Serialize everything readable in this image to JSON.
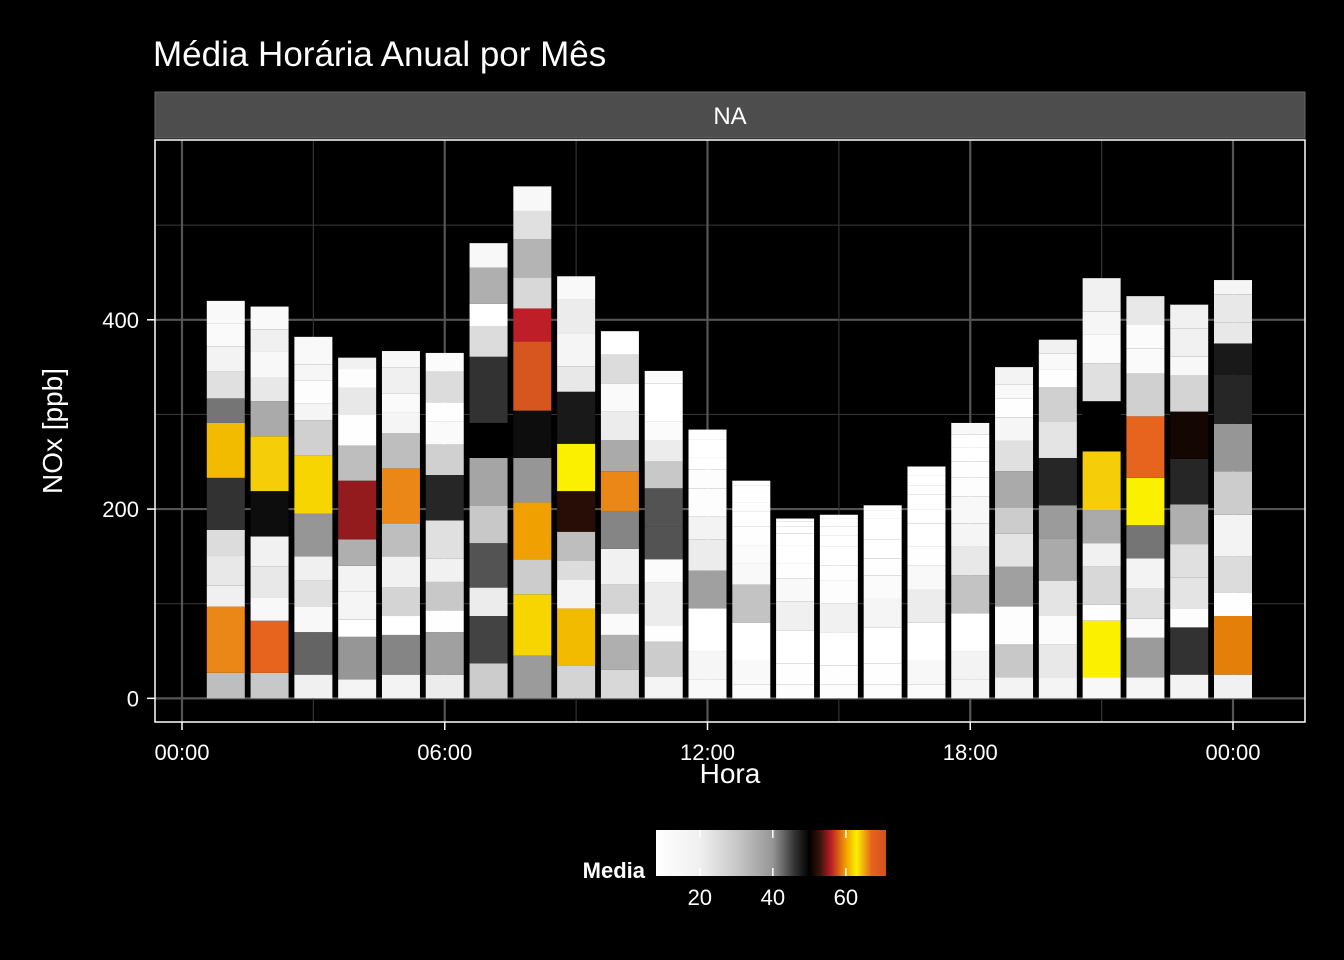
{
  "chart_data": {
    "type": "bar",
    "subtype": "stacked",
    "title": "Média Horária Anual por Mês",
    "facet_label": "NA",
    "xlabel": "Hora",
    "ylabel": "NOx [ppb]",
    "x_ticks": [
      "00:00",
      "06:00",
      "12:00",
      "18:00",
      "00:00"
    ],
    "y_ticks": [
      0,
      200,
      400
    ],
    "ylim": [
      -25,
      590
    ],
    "grid": true,
    "legend": {
      "title": "Media",
      "position": "bottom",
      "ticks": [
        20,
        40,
        60
      ],
      "range": [
        8,
        71
      ]
    },
    "colors": {
      "background": "#000000",
      "facet_strip": "#4d4d4d",
      "grid": "#555555",
      "panel_border": "#ffffff"
    },
    "series_note_hours": "each bar = hour of day, stacked segments = month 1..12 (bottom to top)",
    "bars": [
      {
        "hour": 1,
        "segments": [
          27,
          70,
          22,
          32,
          27,
          55,
          58,
          26,
          28,
          27,
          24,
          24
        ],
        "colors": [
          32,
          66,
          20,
          22,
          25,
          46,
          61,
          42,
          24,
          18,
          12,
          13
        ]
      },
      {
        "hour": 2,
        "segments": [
          27,
          55,
          25,
          32,
          32,
          48,
          58,
          37,
          25,
          27,
          24,
          24
        ],
        "colors": [
          30,
          67,
          14,
          22,
          19,
          49,
          64,
          36,
          22,
          14,
          20,
          13
        ]
      },
      {
        "hour": 3,
        "segments": [
          25,
          45,
          27,
          28,
          25,
          45,
          62,
          37,
          18,
          24,
          17,
          29
        ],
        "colors": [
          20,
          43,
          14,
          24,
          20,
          40,
          62,
          28,
          16,
          10,
          15,
          13
        ]
      },
      {
        "hour": 4,
        "segments": [
          20,
          45,
          18,
          30,
          27,
          28,
          62,
          37,
          33,
          28,
          20,
          12
        ],
        "colors": [
          17,
          40,
          8,
          16,
          18,
          35,
          55,
          32,
          9,
          22,
          10,
          19
        ]
      },
      {
        "hour": 5,
        "segments": [
          25,
          42,
          20,
          30,
          33,
          35,
          58,
          37,
          22,
          20,
          28,
          17
        ],
        "colors": [
          18,
          41,
          8,
          27,
          19,
          32,
          66,
          32,
          16,
          12,
          20,
          14
        ]
      },
      {
        "hour": 6,
        "segments": [
          25,
          45,
          23,
          30,
          25,
          40,
          48,
          32,
          25,
          20,
          32,
          20
        ],
        "colors": [
          21,
          38,
          9,
          30,
          19,
          24,
          47,
          28,
          12,
          9,
          25,
          11
        ]
      },
      {
        "hour": 7,
        "segments": [
          37,
          50,
          30,
          47,
          40,
          50,
          37,
          70,
          32,
          24,
          38,
          26
        ],
        "colors": [
          29,
          45,
          21,
          44,
          30,
          37,
          50,
          46,
          25,
          8,
          35,
          14
        ]
      },
      {
        "hour": 8,
        "segments": [
          45,
          65,
          37,
          60,
          47,
          50,
          73,
          35,
          33,
          40,
          30,
          26
        ],
        "colors": [
          39,
          62,
          29,
          60,
          40,
          49,
          70,
          56,
          26,
          34,
          24,
          14
        ]
      },
      {
        "hour": 9,
        "segments": [
          35,
          60,
          31,
          20,
          30,
          43,
          50,
          55,
          27,
          35,
          35,
          25
        ],
        "colors": [
          27,
          61,
          17,
          25,
          32,
          52,
          63,
          48,
          22,
          16,
          21,
          13
        ]
      },
      {
        "hour": 10,
        "segments": [
          30,
          37,
          23,
          30,
          38,
          40,
          42,
          33,
          30,
          30,
          30,
          25
        ],
        "colors": [
          26,
          35,
          12,
          27,
          19,
          41,
          66,
          36,
          21,
          12,
          25,
          7
        ]
      },
      {
        "hour": 11,
        "segments": [
          23,
          37,
          17,
          45,
          25,
          35,
          40,
          28,
          23,
          20,
          40,
          13
        ],
        "colors": [
          17,
          29,
          9,
          21,
          11,
          44,
          44,
          30,
          21,
          11,
          7,
          11
        ]
      },
      {
        "hour": 12,
        "segments": [
          20,
          30,
          45,
          40,
          33,
          24,
          30,
          20,
          12,
          10,
          10,
          10
        ],
        "colors": [
          13,
          15,
          8,
          38,
          21,
          18,
          10,
          10,
          8,
          8,
          8,
          8
        ]
      },
      {
        "hour": 13,
        "segments": [
          15,
          25,
          40,
          40,
          22,
          20,
          20,
          15,
          10,
          10,
          8,
          5
        ],
        "colors": [
          11,
          13,
          8,
          31,
          13,
          11,
          9,
          8,
          8,
          8,
          8,
          8
        ]
      },
      {
        "hour": 14,
        "segments": [
          15,
          22,
          35,
          30,
          25,
          15,
          20,
          12,
          8,
          5,
          3,
          0
        ],
        "colors": [
          10,
          9,
          8,
          20,
          13,
          9,
          8,
          8,
          8,
          8,
          8,
          8
        ]
      },
      {
        "hour": 15,
        "segments": [
          15,
          20,
          35,
          30,
          25,
          15,
          20,
          12,
          10,
          8,
          4,
          0
        ],
        "colors": [
          10,
          9,
          8,
          19,
          10,
          9,
          8,
          8,
          8,
          8,
          8,
          8
        ]
      },
      {
        "hour": 16,
        "segments": [
          15,
          22,
          38,
          30,
          25,
          18,
          20,
          12,
          10,
          8,
          6,
          0
        ],
        "colors": [
          10,
          9,
          8,
          16,
          11,
          9,
          8,
          8,
          8,
          8,
          8,
          8
        ]
      },
      {
        "hour": 17,
        "segments": [
          15,
          25,
          40,
          35,
          25,
          20,
          25,
          15,
          15,
          10,
          10,
          10
        ],
        "colors": [
          11,
          14,
          8,
          21,
          13,
          9,
          8,
          8,
          8,
          8,
          8,
          8
        ]
      },
      {
        "hour": 18,
        "segments": [
          20,
          30,
          40,
          40,
          30,
          25,
          28,
          20,
          17,
          15,
          14,
          12
        ],
        "colors": [
          16,
          18,
          8,
          31,
          22,
          16,
          14,
          10,
          9,
          8,
          8,
          14
        ]
      },
      {
        "hour": 19,
        "segments": [
          22,
          35,
          40,
          42,
          35,
          28,
          38,
          32,
          25,
          20,
          15,
          18
        ],
        "colors": [
          18,
          30,
          10,
          38,
          23,
          29,
          36,
          24,
          15,
          9,
          13,
          18
        ]
      },
      {
        "hour": 20,
        "segments": [
          22,
          35,
          30,
          37,
          45,
          35,
          50,
          38,
          37,
          18,
          17,
          15
        ],
        "colors": [
          17,
          22,
          11,
          23,
          36,
          39,
          47,
          23,
          28,
          9,
          13,
          19
        ]
      },
      {
        "hour": 21,
        "segments": [
          22,
          60,
          17,
          40,
          25,
          35,
          62,
          53,
          40,
          30,
          25,
          35
        ],
        "colors": [
          14,
          63,
          9,
          26,
          19,
          36,
          64,
          50,
          24,
          11,
          15,
          19
        ]
      },
      {
        "hour": 22,
        "segments": [
          22,
          42,
          20,
          32,
          32,
          35,
          50,
          65,
          45,
          27,
          25,
          30
        ],
        "colors": [
          16,
          39,
          12,
          24,
          18,
          42,
          63,
          67,
          28,
          12,
          11,
          22
        ]
      },
      {
        "hour": 23,
        "segments": [
          25,
          50,
          20,
          33,
          35,
          42,
          48,
          50,
          38,
          20,
          30,
          25
        ],
        "colors": [
          18,
          46,
          10,
          23,
          24,
          35,
          47,
          51,
          27,
          14,
          19,
          19
        ]
      },
      {
        "hour": 24,
        "segments": [
          25,
          62,
          25,
          38,
          44,
          46,
          50,
          52,
          33,
          22,
          30,
          15
        ],
        "colors": [
          19,
          59,
          9,
          25,
          18,
          29,
          40,
          47,
          48,
          22,
          22,
          16
        ]
      }
    ]
  }
}
